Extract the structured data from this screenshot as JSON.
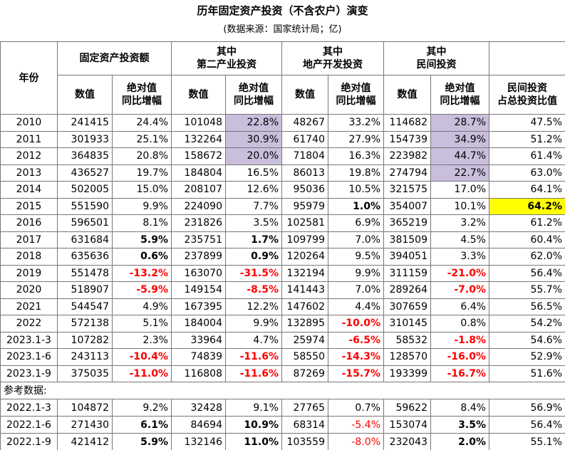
{
  "header": {
    "title": "历年固定资产投资（不含农户）演变",
    "subtitle": "(数据来源：国家统计局；亿)"
  },
  "table": {
    "corner": "年份",
    "groups": [
      [
        "固定资产投资额"
      ],
      [
        "其中",
        "第二产业投资"
      ],
      [
        "其中",
        "地产开发投资"
      ],
      [
        "其中",
        "民间投资"
      ]
    ],
    "subheaders": [
      [
        "数值"
      ],
      [
        "绝对值",
        "同比增幅"
      ],
      [
        "数值"
      ],
      [
        "绝对值",
        "同比增幅"
      ],
      [
        "数值"
      ],
      [
        "绝对值",
        "同比增幅"
      ],
      [
        "数值"
      ],
      [
        "绝对值",
        "同比增幅"
      ],
      [
        "民间投资",
        "占总投资比值"
      ]
    ],
    "rows": [
      [
        "2010",
        "241415",
        "24.4%",
        "101048",
        "22.8%",
        "48267",
        "33.2%",
        "114682",
        "28.7%",
        "47.5%"
      ],
      [
        "2011",
        "301933",
        "25.1%",
        "132264",
        "30.9%",
        "61740",
        "27.9%",
        "154739",
        "34.9%",
        "51.2%"
      ],
      [
        "2012",
        "364835",
        "20.8%",
        "158672",
        "20.0%",
        "71804",
        "16.3%",
        "223982",
        "44.7%",
        "61.4%"
      ],
      [
        "2013",
        "436527",
        "19.7%",
        "184804",
        "16.5%",
        "86013",
        "19.8%",
        "274794",
        "22.7%",
        "63.0%"
      ],
      [
        "2014",
        "502005",
        "15.0%",
        "208107",
        "12.6%",
        "95036",
        "10.5%",
        "321575",
        "17.0%",
        "64.1%"
      ],
      [
        "2015",
        "551590",
        "9.9%",
        "224090",
        "7.7%",
        "95979",
        "1.0%",
        "354007",
        "10.1%",
        "64.2%"
      ],
      [
        "2016",
        "596501",
        "8.1%",
        "231826",
        "3.5%",
        "102581",
        "6.9%",
        "365219",
        "3.2%",
        "61.2%"
      ],
      [
        "2017",
        "631684",
        "5.9%",
        "235751",
        "1.7%",
        "109799",
        "7.0%",
        "381509",
        "4.5%",
        "60.4%"
      ],
      [
        "2018",
        "635636",
        "0.6%",
        "237899",
        "0.9%",
        "120264",
        "9.5%",
        "394051",
        "3.3%",
        "62.0%"
      ],
      [
        "2019",
        "551478",
        "-13.2%",
        "163070",
        "-31.5%",
        "132194",
        "9.9%",
        "311159",
        "-21.0%",
        "56.4%"
      ],
      [
        "2020",
        "518907",
        "-5.9%",
        "149154",
        "-8.5%",
        "141443",
        "7.0%",
        "289264",
        "-7.0%",
        "55.7%"
      ],
      [
        "2021",
        "544547",
        "4.9%",
        "167395",
        "12.2%",
        "147602",
        "4.4%",
        "307659",
        "6.4%",
        "56.5%"
      ],
      [
        "2022",
        "572138",
        "5.1%",
        "184004",
        "9.9%",
        "132895",
        "-10.0%",
        "310145",
        "0.8%",
        "54.2%"
      ],
      [
        "2023.1-3",
        "107282",
        "2.3%",
        "33964",
        "4.7%",
        "25974",
        "-6.5%",
        "58532",
        "-1.8%",
        "54.6%"
      ],
      [
        "2023.1-6",
        "243113",
        "-10.4%",
        "74839",
        "-11.6%",
        "58550",
        "-14.3%",
        "128570",
        "-16.0%",
        "52.9%"
      ],
      [
        "2023.1-9",
        "375035",
        "-11.0%",
        "116808",
        "-11.6%",
        "87269",
        "-15.7%",
        "193399",
        "-16.7%",
        "51.6%"
      ]
    ],
    "reference_label": "参考数据:",
    "reference_rows": [
      [
        "2022.1-3",
        "104872",
        "9.2%",
        "32428",
        "9.1%",
        "27765",
        "0.7%",
        "59622",
        "8.4%",
        "56.9%"
      ],
      [
        "2022.1-6",
        "271430",
        "6.1%",
        "84694",
        "10.9%",
        "68314",
        "-5.4%",
        "153074",
        "3.5%",
        "56.4%"
      ],
      [
        "2022.1-9",
        "421412",
        "5.9%",
        "132146",
        "11.0%",
        "103559",
        "-8.0%",
        "232043",
        "2.0%",
        "55.1%"
      ]
    ]
  }
}
